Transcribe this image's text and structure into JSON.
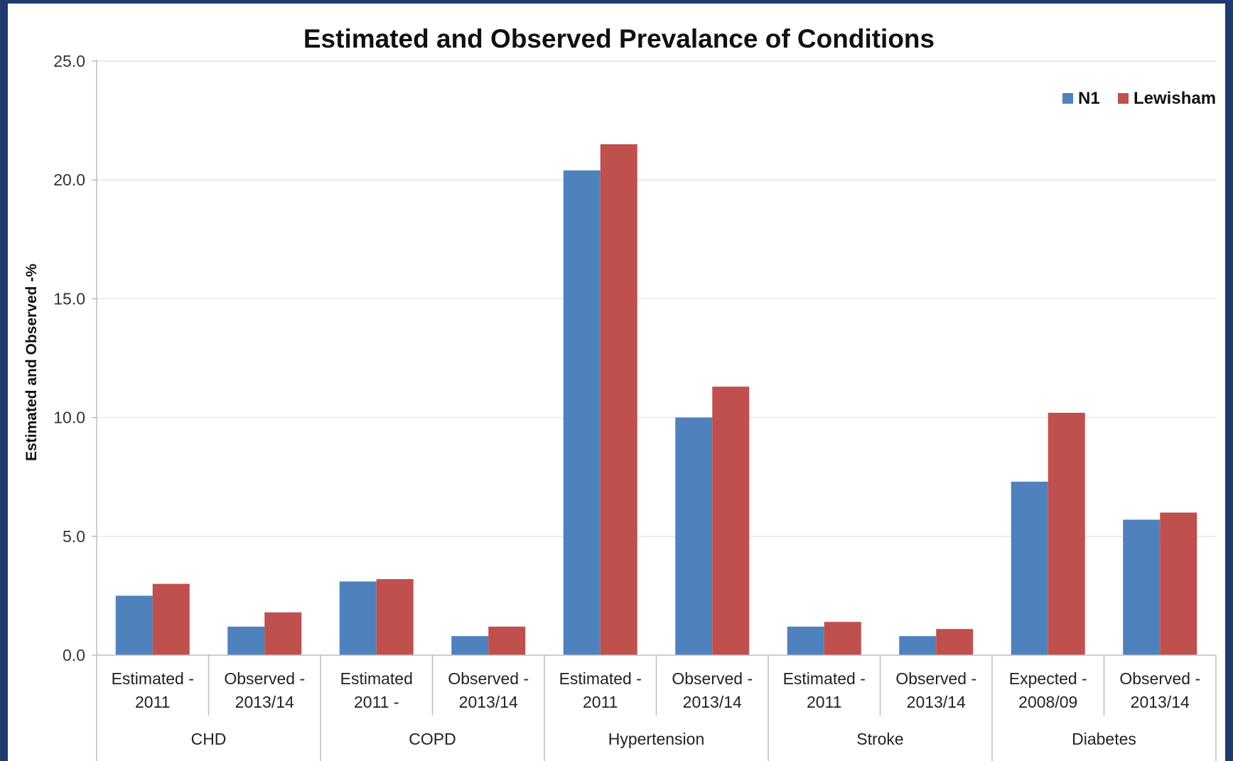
{
  "chart_data": {
    "type": "bar",
    "title": "Estimated and Observed Prevalance of Conditions",
    "ylabel": "Estimated and Observed  -%",
    "xlabel": "",
    "ylim": [
      0,
      25
    ],
    "yticks": [
      "0.0",
      "5.0",
      "10.0",
      "15.0",
      "20.0",
      "25.0"
    ],
    "grid": "horizontal",
    "legend_position": "top-right",
    "groups": [
      "CHD",
      "COPD",
      "Hypertension",
      "Stroke",
      "Diabetes"
    ],
    "categories": [
      {
        "group": "CHD",
        "line1": "Estimated -",
        "line2": "2011"
      },
      {
        "group": "CHD",
        "line1": "Observed -",
        "line2": "2013/14"
      },
      {
        "group": "COPD",
        "line1": "Estimated",
        "line2": "2011 -"
      },
      {
        "group": "COPD",
        "line1": "Observed -",
        "line2": "2013/14"
      },
      {
        "group": "Hypertension",
        "line1": "Estimated -",
        "line2": "2011"
      },
      {
        "group": "Hypertension",
        "line1": "Observed -",
        "line2": "2013/14"
      },
      {
        "group": "Stroke",
        "line1": "Estimated -",
        "line2": "2011"
      },
      {
        "group": "Stroke",
        "line1": "Observed -",
        "line2": "2013/14"
      },
      {
        "group": "Diabetes",
        "line1": "Expected -",
        "line2": "2008/09"
      },
      {
        "group": "Diabetes",
        "line1": "Observed -",
        "line2": "2013/14"
      }
    ],
    "series": [
      {
        "name": "N1",
        "color": "#4f81bd",
        "values": [
          2.5,
          1.2,
          3.1,
          0.8,
          20.4,
          10.0,
          1.2,
          0.8,
          7.3,
          5.7
        ]
      },
      {
        "name": "Lewisham",
        "color": "#c0504d",
        "values": [
          3.0,
          1.8,
          3.2,
          1.2,
          21.5,
          11.3,
          1.4,
          1.1,
          10.2,
          6.0
        ]
      }
    ]
  }
}
